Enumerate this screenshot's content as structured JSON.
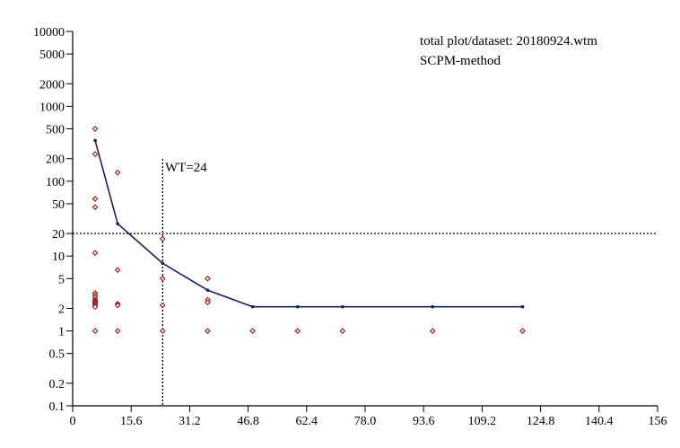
{
  "chart_data": {
    "type": "scatter",
    "title_lines": [
      "total plot/dataset: 20180924.wtm",
      "SCPM-method"
    ],
    "xlabel": "",
    "ylabel": "",
    "x_scale": "linear",
    "y_scale": "log",
    "xlim": [
      0,
      156
    ],
    "ylim": [
      0.1,
      10000
    ],
    "x_ticks": [
      "0",
      "15.6",
      "31.2",
      "46.8",
      "62.4",
      "78.0",
      "93.6",
      "109.2",
      "124.8",
      "140.4",
      "156"
    ],
    "y_ticks": [
      "0.1",
      "0.2",
      "0.5",
      "1",
      "2",
      "5",
      "10",
      "20",
      "50",
      "100",
      "200",
      "500",
      "1000",
      "2000",
      "5000",
      "10000"
    ],
    "grid": false,
    "threshold_lines": [
      {
        "orientation": "vertical",
        "value": 24,
        "label": "WT=24",
        "style": "dotted"
      },
      {
        "orientation": "horizontal",
        "value": 20,
        "label": "",
        "style": "dotted"
      }
    ],
    "series": [
      {
        "kind": "points",
        "x": [
          6,
          6,
          6,
          6,
          6,
          6,
          6,
          6,
          6,
          6,
          6,
          6,
          6,
          6,
          6,
          12,
          12,
          12,
          12,
          12,
          24,
          24,
          24,
          24,
          36,
          36,
          36,
          36,
          48,
          60,
          72,
          96,
          120
        ],
        "y": [
          500,
          230,
          58,
          45,
          11,
          3.2,
          3.0,
          2.8,
          2.6,
          2.5,
          2.4,
          2.3,
          2.2,
          2.1,
          1,
          130,
          6.5,
          2.3,
          2.2,
          1,
          17,
          5,
          2.2,
          1,
          5,
          2.6,
          2.4,
          1,
          1,
          1,
          1,
          1,
          1
        ]
      },
      {
        "kind": "line",
        "x": [
          6,
          12,
          24,
          36,
          48,
          60,
          72,
          96,
          120
        ],
        "y": [
          350,
          27,
          8,
          3.5,
          2.1,
          2.1,
          2.1,
          2.1,
          2.1
        ]
      }
    ]
  }
}
